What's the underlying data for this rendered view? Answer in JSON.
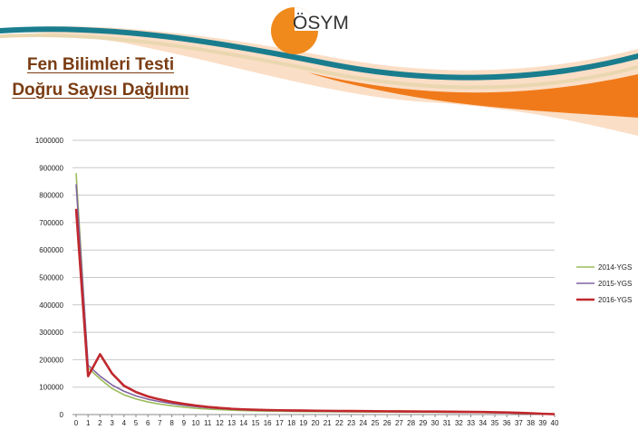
{
  "header": {
    "logo_text": "ÖSYM",
    "colors": {
      "logo_orange": "#f08a1c",
      "wave_teal": "#1a7d8e",
      "wave_orange": "#f07a1a",
      "title_brown": "#7a3c12"
    }
  },
  "slide": {
    "title_line1": "Fen Bilimleri Testi",
    "title_line2": "Doğru Sayısı Dağılımı"
  },
  "chart_data": {
    "type": "line",
    "title": "",
    "xlabel": "",
    "ylabel": "",
    "ylim": [
      0,
      1000000
    ],
    "yticks": [
      0,
      100000,
      200000,
      300000,
      400000,
      500000,
      600000,
      700000,
      800000,
      900000,
      1000000
    ],
    "ytick_labels": [
      "0",
      "100000",
      "200000",
      "300000",
      "400000",
      "500000",
      "600000",
      "700000",
      "800000",
      "900000",
      "1000000"
    ],
    "x": [
      0,
      1,
      2,
      3,
      4,
      5,
      6,
      7,
      8,
      9,
      10,
      11,
      12,
      13,
      14,
      15,
      16,
      17,
      18,
      19,
      20,
      21,
      22,
      23,
      24,
      25,
      26,
      27,
      28,
      29,
      30,
      31,
      32,
      33,
      34,
      35,
      36,
      37,
      38,
      39,
      40
    ],
    "xtick_labels": [
      "0",
      "1",
      "2",
      "3",
      "4",
      "5",
      "6",
      "7",
      "8",
      "9",
      "10",
      "11",
      "12",
      "13",
      "14",
      "15",
      "16",
      "17",
      "18",
      "19",
      "20",
      "21",
      "22",
      "23",
      "24",
      "25",
      "26",
      "27",
      "28",
      "29",
      "30",
      "31",
      "32",
      "33",
      "34",
      "35",
      "36",
      "37",
      "38",
      "39",
      "40"
    ],
    "grid": true,
    "legend_position": "right",
    "series": [
      {
        "name": "2014-YGS",
        "color": "#9bbb59",
        "values": [
          880000,
          170000,
          130000,
          95000,
          72000,
          57000,
          46000,
          38000,
          32000,
          27000,
          23000,
          20000,
          18000,
          16000,
          14500,
          13500,
          12700,
          12000,
          11400,
          11000,
          10600,
          10300,
          10000,
          9800,
          9600,
          9400,
          9200,
          9000,
          8800,
          8600,
          8400,
          8200,
          8000,
          7700,
          7300,
          6800,
          6000,
          5000,
          3800,
          2500,
          1200
        ]
      },
      {
        "name": "2015-YGS",
        "color": "#8064a2",
        "values": [
          840000,
          180000,
          140000,
          108000,
          85000,
          68000,
          56000,
          47000,
          40000,
          34000,
          29000,
          25000,
          22000,
          19500,
          17500,
          16000,
          15000,
          14200,
          13500,
          12900,
          12400,
          12000,
          11600,
          11300,
          11000,
          10700,
          10400,
          10100,
          9800,
          9500,
          9200,
          8900,
          8600,
          8200,
          7700,
          7000,
          6100,
          5000,
          3800,
          2400,
          1100
        ]
      },
      {
        "name": "2016-YGS",
        "color": "#c0282d",
        "values": [
          750000,
          140000,
          220000,
          150000,
          105000,
          82000,
          66000,
          55000,
          46000,
          39000,
          33000,
          28000,
          24000,
          21000,
          19000,
          17500,
          16500,
          15700,
          15000,
          14500,
          14000,
          13600,
          13200,
          12900,
          12600,
          12300,
          12000,
          11700,
          11400,
          11100,
          10800,
          10500,
          10200,
          9800,
          9300,
          8600,
          7600,
          6300,
          4700,
          2900,
          1300
        ]
      }
    ]
  }
}
